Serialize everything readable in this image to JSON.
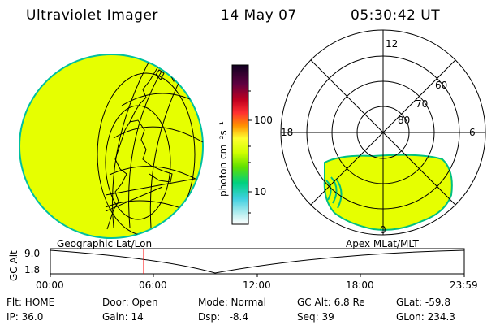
{
  "header": {
    "instrument": "Ultraviolet Imager",
    "date": "14 May 07",
    "time": "05:30:42 UT"
  },
  "colorbar": {
    "unit_label": "photon cm⁻²s⁻¹",
    "ticks": [
      "100",
      "10"
    ],
    "colors": [
      "#1a0030",
      "#500030",
      "#a00020",
      "#ff2020",
      "#ff8000",
      "#ffff40",
      "#c8ff00",
      "#00d060",
      "#00c0c0",
      "#ffffff"
    ]
  },
  "polar_plot": {
    "hour_labels": [
      "12",
      "18",
      "6",
      "0"
    ],
    "lat_labels": [
      "60",
      "70",
      "80"
    ]
  },
  "panel_labels": {
    "left": "Geographic Lat/Lon",
    "right": "Apex MLat/MLT"
  },
  "altitude_plot": {
    "axis_label": "GC Alt",
    "y_ticks": [
      "9.0",
      "1.8"
    ],
    "x_ticks": [
      "00:00",
      "06:00",
      "12:00",
      "18:00",
      "23:59"
    ]
  },
  "info": {
    "flt": "Flt: HOME",
    "ip": "IP: 36.0",
    "door": "Door: Open",
    "gain": "Gain: 14",
    "mode": "Mode: Normal",
    "dsp": "Dsp:   -8.4",
    "gcalt": "GC Alt: 6.8 Re",
    "seq": "Seq: 39",
    "glat": "GLat: -59.8",
    "glon": "GLon: 234.3"
  },
  "colors": {
    "image_fill": "#e6ff00",
    "image_edge": "#00c0a0",
    "marker_line": "#ff0000"
  }
}
